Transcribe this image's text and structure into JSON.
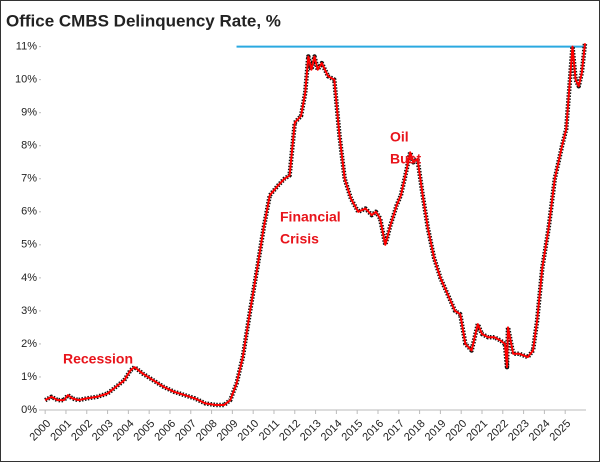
{
  "chart_data": {
    "type": "line",
    "title": "Office CMBS Delinquency Rate, %",
    "x": [
      2000.0,
      2000.3,
      2000.6,
      2000.9,
      2001.1,
      2001.3,
      2001.6,
      2002.0,
      2002.5,
      2003.0,
      2003.4,
      2003.8,
      2004.1,
      2004.3,
      2004.7,
      2005.2,
      2005.7,
      2006.2,
      2006.7,
      2007.2,
      2007.7,
      2008.2,
      2008.6,
      2008.9,
      2009.2,
      2009.5,
      2009.85,
      2010.2,
      2010.5,
      2010.8,
      2011.2,
      2011.5,
      2011.75,
      2012.0,
      2012.3,
      2012.5,
      2012.65,
      2012.8,
      2012.95,
      2013.1,
      2013.3,
      2013.6,
      2013.9,
      2014.15,
      2014.4,
      2014.7,
      2015.05,
      2015.4,
      2015.7,
      2015.9,
      2016.1,
      2016.35,
      2016.6,
      2016.9,
      2017.1,
      2017.35,
      2017.55,
      2017.7,
      2017.9,
      2018.15,
      2018.4,
      2018.7,
      2019.0,
      2019.35,
      2019.7,
      2019.95,
      2020.2,
      2020.5,
      2020.8,
      2021.0,
      2021.3,
      2021.6,
      2021.9,
      2022.1,
      2022.2,
      2022.25,
      2022.5,
      2022.8,
      2023.2,
      2023.45,
      2023.65,
      2023.9,
      2024.2,
      2024.5,
      2024.85,
      2025.05,
      2025.35,
      2025.5,
      2025.65,
      2025.8,
      2025.95
    ],
    "series": [
      {
        "name": "Office CMBS Delinquency Rate",
        "color": "#ff0000",
        "values": [
          0.3,
          0.4,
          0.3,
          0.3,
          0.45,
          0.35,
          0.3,
          0.35,
          0.4,
          0.5,
          0.7,
          0.9,
          1.2,
          1.3,
          1.1,
          0.9,
          0.7,
          0.55,
          0.45,
          0.35,
          0.2,
          0.15,
          0.15,
          0.3,
          0.8,
          1.6,
          3.0,
          4.3,
          5.5,
          6.5,
          6.8,
          7.0,
          7.1,
          8.7,
          8.9,
          9.6,
          10.7,
          10.3,
          10.7,
          10.3,
          10.5,
          10.1,
          10.0,
          8.3,
          7.0,
          6.4,
          6.0,
          6.1,
          5.9,
          6.0,
          5.8,
          5.0,
          5.6,
          6.2,
          6.5,
          7.2,
          7.8,
          7.5,
          7.6,
          6.5,
          5.5,
          4.6,
          4.0,
          3.5,
          3.0,
          2.9,
          2.0,
          1.8,
          2.6,
          2.3,
          2.2,
          2.2,
          2.1,
          2.0,
          1.3,
          2.5,
          1.7,
          1.7,
          1.6,
          1.8,
          2.7,
          4.3,
          5.5,
          7.0,
          8.0,
          8.5,
          11.0,
          10.0,
          9.8,
          10.2,
          11.1
        ]
      }
    ],
    "xlim": [
      1999.8,
      2026.0
    ],
    "xticks": [
      2000,
      2001,
      2002,
      2003,
      2004,
      2005,
      2006,
      2007,
      2008,
      2009,
      2010,
      2011,
      2012,
      2013,
      2014,
      2015,
      2016,
      2017,
      2018,
      2019,
      2020,
      2021,
      2022,
      2023,
      2024,
      2025
    ],
    "ylim": [
      0,
      11.2
    ],
    "yticks": [
      {
        "value": 0,
        "label": "0%"
      },
      {
        "value": 1,
        "label": "1%"
      },
      {
        "value": 2,
        "label": "2%"
      },
      {
        "value": 3,
        "label": "3%"
      },
      {
        "value": 4,
        "label": "4%"
      },
      {
        "value": 5,
        "label": "5%"
      },
      {
        "value": 6,
        "label": "6%"
      },
      {
        "value": 7,
        "label": "7%"
      },
      {
        "value": 8,
        "label": "8%"
      },
      {
        "value": 9,
        "label": "9%"
      },
      {
        "value": 10,
        "label": "10%"
      },
      {
        "value": 11,
        "label": "11%"
      }
    ],
    "reference_line": {
      "y": 11,
      "x_start": 2009.2,
      "color": "#2aa9e0"
    },
    "annotations": [
      {
        "lines": [
          "Recession"
        ]
      },
      {
        "lines": [
          "Financial",
          "Crisis"
        ]
      },
      {
        "lines": [
          "Oil",
          "Bust"
        ]
      }
    ],
    "annotation_color": "#e8141b",
    "grid": false
  }
}
